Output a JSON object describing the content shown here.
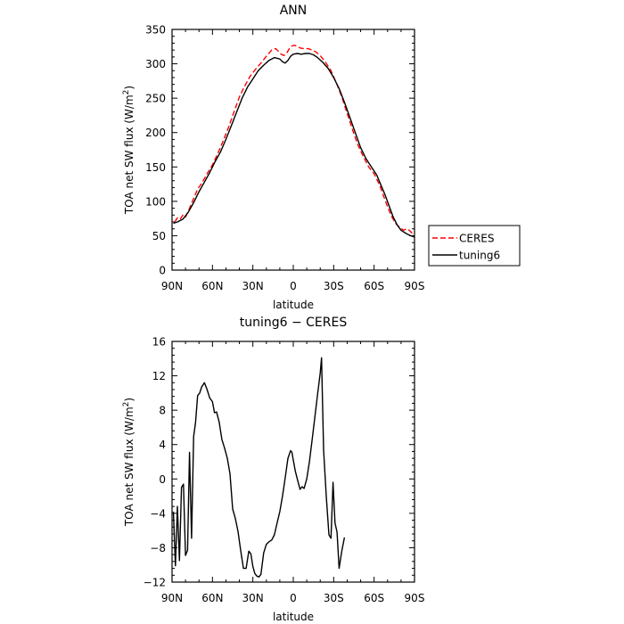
{
  "chart_data": [
    {
      "type": "line",
      "title": "ANN",
      "xlabel": "latitude",
      "ylabel_prefix": "TOA net SW flux (W/m",
      "ylabel_sup": "2",
      "ylabel_suffix": ")",
      "xlim": [
        90,
        -90
      ],
      "ylim": [
        0,
        350
      ],
      "xticks": [
        {
          "v": 90,
          "label": "90N"
        },
        {
          "v": 60,
          "label": "60N"
        },
        {
          "v": 30,
          "label": "30N"
        },
        {
          "v": 0,
          "label": "0"
        },
        {
          "v": -30,
          "label": "30S"
        },
        {
          "v": -60,
          "label": "60S"
        },
        {
          "v": -90,
          "label": "90S"
        }
      ],
      "yticks": [
        0,
        50,
        100,
        150,
        200,
        250,
        300,
        350
      ],
      "legend": {
        "placement": "right-outside",
        "entries": [
          "CERES",
          "tuning6"
        ]
      },
      "series": [
        {
          "name": "CERES",
          "color": "#ff0000",
          "dash": "dashed",
          "points": [
            [
              88,
              70
            ],
            [
              86,
              76
            ],
            [
              84,
              74
            ],
            [
              82,
              80
            ],
            [
              80,
              77
            ],
            [
              77,
              90
            ],
            [
              74,
              104
            ],
            [
              71,
              118
            ],
            [
              68,
              126
            ],
            [
              64,
              140
            ],
            [
              60,
              153
            ],
            [
              56,
              170
            ],
            [
              52,
              188
            ],
            [
              48,
              208
            ],
            [
              44,
              230
            ],
            [
              40,
              252
            ],
            [
              36,
              268
            ],
            [
              32,
              282
            ],
            [
              28,
              292
            ],
            [
              24,
              301
            ],
            [
              20,
              311
            ],
            [
              16,
              320
            ],
            [
              13,
              322
            ],
            [
              11,
              318
            ],
            [
              9,
              314
            ],
            [
              7,
              312
            ],
            [
              5,
              315
            ],
            [
              3,
              322
            ],
            [
              1,
              326
            ],
            [
              -1,
              327
            ],
            [
              -3,
              325
            ],
            [
              -5,
              323
            ],
            [
              -8,
              322
            ],
            [
              -11,
              322
            ],
            [
              -14,
              320
            ],
            [
              -17,
              317
            ],
            [
              -20,
              312
            ],
            [
              -24,
              302
            ],
            [
              -28,
              290
            ],
            [
              -32,
              272
            ],
            [
              -36,
              252
            ],
            [
              -40,
              228
            ],
            [
              -44,
              204
            ],
            [
              -48,
              182
            ],
            [
              -52,
              165
            ],
            [
              -56,
              150
            ],
            [
              -60,
              140
            ],
            [
              -64,
              124
            ],
            [
              -67,
              108
            ],
            [
              -70,
              92
            ],
            [
              -73,
              78
            ],
            [
              -76,
              68
            ],
            [
              -79,
              62
            ],
            [
              -82,
              58
            ],
            [
              -84,
              60
            ],
            [
              -86,
              58
            ],
            [
              -88,
              54
            ],
            [
              -90,
              52
            ]
          ]
        },
        {
          "name": "tuning6",
          "color": "#000000",
          "dash": "solid",
          "points": [
            [
              89,
              68
            ],
            [
              86,
              70
            ],
            [
              82,
              74
            ],
            [
              78,
              84
            ],
            [
              74,
              98
            ],
            [
              70,
              114
            ],
            [
              66,
              128
            ],
            [
              62,
              142
            ],
            [
              58,
              158
            ],
            [
              54,
              172
            ],
            [
              50,
              190
            ],
            [
              46,
              210
            ],
            [
              42,
              230
            ],
            [
              38,
              250
            ],
            [
              34,
              266
            ],
            [
              30,
              278
            ],
            [
              26,
              290
            ],
            [
              22,
              298
            ],
            [
              18,
              305
            ],
            [
              14,
              309
            ],
            [
              10,
              307
            ],
            [
              8,
              303
            ],
            [
              6,
              301
            ],
            [
              4,
              305
            ],
            [
              2,
              311
            ],
            [
              0,
              314
            ],
            [
              -3,
              315
            ],
            [
              -6,
              314
            ],
            [
              -9,
              315
            ],
            [
              -12,
              315
            ],
            [
              -15,
              313
            ],
            [
              -18,
              309
            ],
            [
              -22,
              302
            ],
            [
              -26,
              293
            ],
            [
              -30,
              280
            ],
            [
              -34,
              264
            ],
            [
              -38,
              244
            ],
            [
              -42,
              222
            ],
            [
              -46,
              200
            ],
            [
              -50,
              178
            ],
            [
              -54,
              162
            ],
            [
              -58,
              150
            ],
            [
              -62,
              138
            ],
            [
              -65,
              124
            ],
            [
              -68,
              110
            ],
            [
              -71,
              94
            ],
            [
              -74,
              78
            ],
            [
              -77,
              66
            ],
            [
              -80,
              58
            ],
            [
              -84,
              53
            ],
            [
              -87,
              50
            ],
            [
              -90,
              48
            ]
          ]
        }
      ]
    },
    {
      "type": "line",
      "title": "tuning6 − CERES",
      "xlabel": "latitude",
      "ylabel_prefix": "TOA net SW flux (W/m",
      "ylabel_sup": "2",
      "ylabel_suffix": ")",
      "xlim": [
        90,
        -90
      ],
      "ylim": [
        -12,
        16
      ],
      "xticks": [
        {
          "v": 90,
          "label": "90N"
        },
        {
          "v": 60,
          "label": "60N"
        },
        {
          "v": 30,
          "label": "30N"
        },
        {
          "v": 0,
          "label": "0"
        },
        {
          "v": -30,
          "label": "30S"
        },
        {
          "v": -60,
          "label": "60S"
        },
        {
          "v": -90,
          "label": "90S"
        }
      ],
      "yticks": [
        {
          "v": -12,
          "label": "−12"
        },
        {
          "v": -8,
          "label": "−8"
        },
        {
          "v": -4,
          "label": "−4"
        },
        {
          "v": 0,
          "label": "0"
        },
        {
          "v": 4,
          "label": "4"
        },
        {
          "v": 8,
          "label": "8"
        },
        {
          "v": 12,
          "label": "12"
        },
        {
          "v": 16,
          "label": "16"
        }
      ],
      "series": [
        {
          "name": "tuning6 - CERES",
          "color": "#000000",
          "dash": "solid",
          "points": [
            [
              89,
              -3.8
            ],
            [
              87.5,
              -10.1
            ],
            [
              86,
              -3.2
            ],
            [
              84.5,
              -9.5
            ],
            [
              83,
              -1.0
            ],
            [
              81.5,
              -0.6
            ],
            [
              80,
              -8.9
            ],
            [
              78.5,
              -8.3
            ],
            [
              77,
              3.1
            ],
            [
              75.5,
              -6.9
            ],
            [
              74,
              4.9
            ],
            [
              72.5,
              6.6
            ],
            [
              71,
              9.7
            ],
            [
              69.5,
              10.0
            ],
            [
              68,
              10.7
            ],
            [
              66,
              11.2
            ],
            [
              64,
              10.4
            ],
            [
              62,
              9.4
            ],
            [
              60,
              9.0
            ],
            [
              58.5,
              7.7
            ],
            [
              57,
              7.8
            ],
            [
              55,
              6.6
            ],
            [
              53,
              4.6
            ],
            [
              51,
              3.6
            ],
            [
              49,
              2.4
            ],
            [
              47,
              0.6
            ],
            [
              45,
              -3.5
            ],
            [
              43,
              -4.6
            ],
            [
              41,
              -6.1
            ],
            [
              39,
              -8.4
            ],
            [
              37,
              -10.4
            ],
            [
              35,
              -10.4
            ],
            [
              34,
              -9.4
            ],
            [
              33,
              -8.4
            ],
            [
              31.5,
              -8.7
            ],
            [
              30,
              -10.2
            ],
            [
              28.5,
              -11.0
            ],
            [
              27,
              -11.3
            ],
            [
              25.5,
              -11.4
            ],
            [
              24,
              -11.1
            ],
            [
              22,
              -8.6
            ],
            [
              20,
              -7.6
            ],
            [
              18,
              -7.3
            ],
            [
              16,
              -7.1
            ],
            [
              14,
              -6.5
            ],
            [
              12,
              -5.1
            ],
            [
              10,
              -3.8
            ],
            [
              8,
              -2.0
            ],
            [
              6,
              0.1
            ],
            [
              4,
              2.4
            ],
            [
              2,
              3.3
            ],
            [
              1,
              3.1
            ],
            [
              0,
              2.2
            ],
            [
              -1.5,
              0.9
            ],
            [
              -3,
              0.0
            ],
            [
              -5,
              -1.2
            ],
            [
              -6.5,
              -0.9
            ],
            [
              -8,
              -1.1
            ],
            [
              -10,
              0.0
            ],
            [
              -12,
              2.0
            ],
            [
              -14,
              4.6
            ],
            [
              -16,
              7.2
            ],
            [
              -18,
              9.8
            ],
            [
              -20,
              12.3
            ],
            [
              -21,
              14.1
            ],
            [
              -22.5,
              3.4
            ],
            [
              -24.5,
              -2.0
            ],
            [
              -26.5,
              -6.5
            ],
            [
              -28,
              -6.9
            ],
            [
              -29.5,
              -0.4
            ],
            [
              -31,
              -5.1
            ],
            [
              -32.5,
              -6.2
            ],
            [
              -34,
              -10.4
            ],
            [
              -36,
              -8.4
            ],
            [
              -38,
              -6.8
            ]
          ]
        }
      ]
    }
  ]
}
